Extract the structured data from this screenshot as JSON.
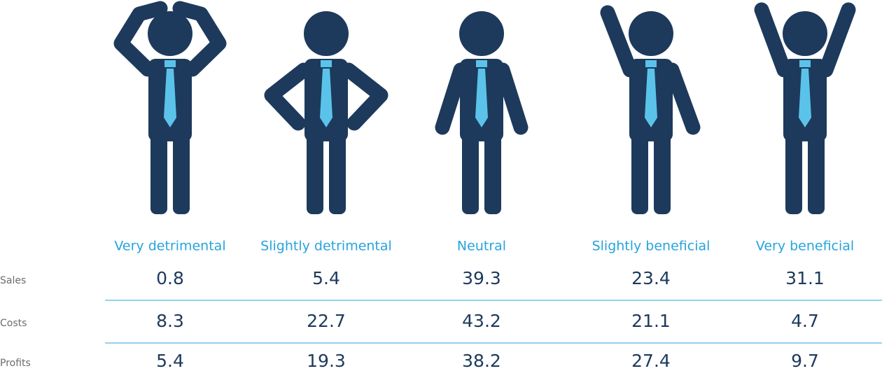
{
  "table": {
    "columns": [
      "Very detrimental",
      "Slightly detrimental",
      "Neutral",
      "Slightly beneficial",
      "Very beneficial"
    ],
    "rows": [
      {
        "label": "Sales",
        "values": [
          0.8,
          5.4,
          39.3,
          23.4,
          31.1
        ]
      },
      {
        "label": "Costs",
        "values": [
          8.3,
          22.7,
          43.2,
          21.1,
          4.7
        ]
      },
      {
        "label": "Profits",
        "values": [
          5.4,
          19.3,
          38.2,
          27.4,
          9.7
        ]
      }
    ]
  }
}
